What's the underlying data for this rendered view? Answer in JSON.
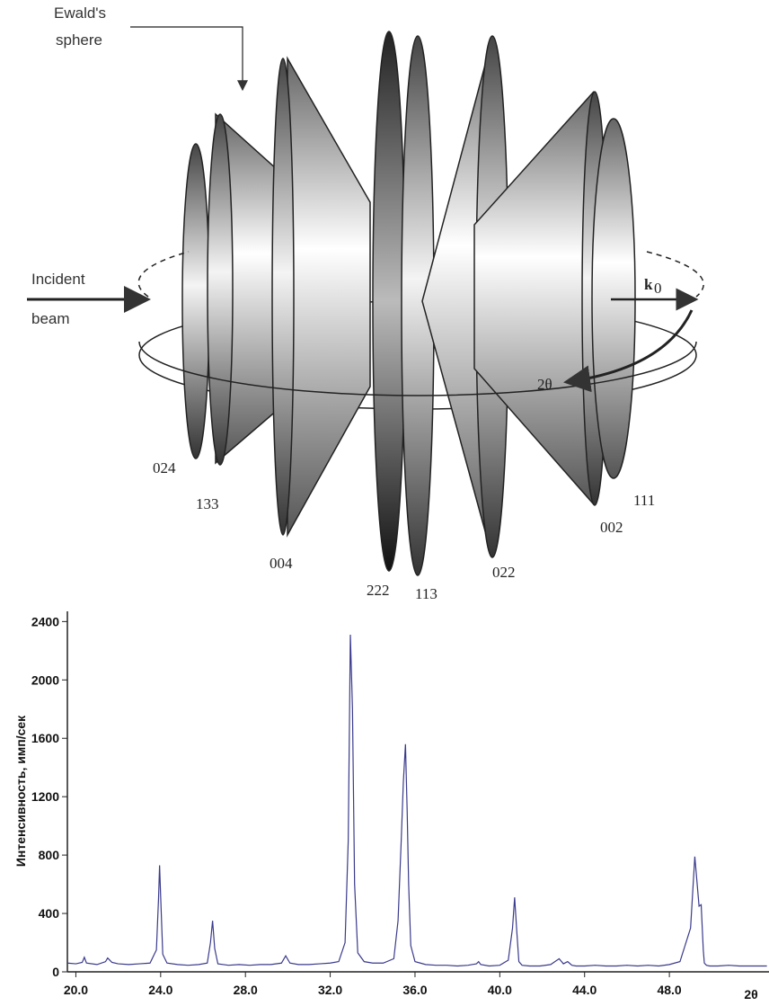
{
  "diagram": {
    "callout": [
      "Ewald's",
      "sphere"
    ],
    "incident": [
      "Incident",
      "beam"
    ],
    "k": "k",
    "k_sub": "0",
    "two_theta": "2θ",
    "reflections": [
      "024",
      "133",
      "004",
      "222",
      "113",
      "022",
      "002",
      "111"
    ]
  },
  "chart_data": {
    "type": "line",
    "y_label": "Интенсивность, имп/сек",
    "x_label": "2θ",
    "color": "#3a3a8c",
    "xlim": [
      19.6,
      52.7
    ],
    "ylim": [
      0,
      2470
    ],
    "xticks": [
      {
        "value": 20,
        "label": "20.0"
      },
      {
        "value": 24,
        "label": "24.0"
      },
      {
        "value": 28,
        "label": "28.0"
      },
      {
        "value": 32,
        "label": "32.0"
      },
      {
        "value": 36,
        "label": "36.0"
      },
      {
        "value": 40,
        "label": "40.0"
      },
      {
        "value": 44,
        "label": "44.0"
      },
      {
        "value": 48,
        "label": "48.0"
      }
    ],
    "yticks": [
      0,
      400,
      800,
      1200,
      1600,
      2000,
      2400
    ],
    "x": [
      19.6,
      20.0,
      20.3,
      20.4,
      20.5,
      21.0,
      21.4,
      21.5,
      21.7,
      22.0,
      22.5,
      23.0,
      23.5,
      23.8,
      23.9,
      23.95,
      24.0,
      24.1,
      24.3,
      24.8,
      25.3,
      25.8,
      26.2,
      26.35,
      26.45,
      26.55,
      26.7,
      27.2,
      27.7,
      28.2,
      28.7,
      29.2,
      29.7,
      29.9,
      30.1,
      30.5,
      31.0,
      31.5,
      32.0,
      32.4,
      32.7,
      32.85,
      32.95,
      33.05,
      33.15,
      33.3,
      33.6,
      34.0,
      34.5,
      35.0,
      35.2,
      35.35,
      35.45,
      35.55,
      35.63,
      35.7,
      35.8,
      36.0,
      36.5,
      37.0,
      37.5,
      38.0,
      38.5,
      38.9,
      39.0,
      39.1,
      39.5,
      40.0,
      40.4,
      40.6,
      40.7,
      40.8,
      40.9,
      41.05,
      41.4,
      41.9,
      42.4,
      42.8,
      43.0,
      43.2,
      43.4,
      43.6,
      44.0,
      44.5,
      45.0,
      45.5,
      46.0,
      46.5,
      47.0,
      47.5,
      48.0,
      48.5,
      49.0,
      49.2,
      49.4,
      49.5,
      49.6,
      49.65,
      49.75,
      49.9,
      50.3,
      50.8,
      51.3,
      51.8,
      52.2,
      52.6
    ],
    "values": [
      60,
      55,
      65,
      100,
      60,
      50,
      70,
      95,
      65,
      55,
      50,
      55,
      60,
      150,
      500,
      730,
      520,
      120,
      60,
      50,
      45,
      50,
      60,
      200,
      350,
      160,
      55,
      45,
      50,
      45,
      50,
      50,
      60,
      110,
      60,
      50,
      50,
      55,
      60,
      70,
      200,
      900,
      2310,
      1800,
      600,
      130,
      70,
      60,
      60,
      90,
      350,
      900,
      1300,
      1560,
      1100,
      600,
      180,
      70,
      50,
      45,
      45,
      40,
      45,
      55,
      70,
      50,
      40,
      45,
      80,
      300,
      510,
      280,
      70,
      45,
      40,
      40,
      50,
      90,
      55,
      70,
      45,
      40,
      40,
      45,
      40,
      40,
      45,
      40,
      45,
      40,
      50,
      70,
      300,
      790,
      450,
      460,
      150,
      60,
      45,
      40,
      40,
      45,
      40,
      40,
      40,
      40
    ]
  }
}
